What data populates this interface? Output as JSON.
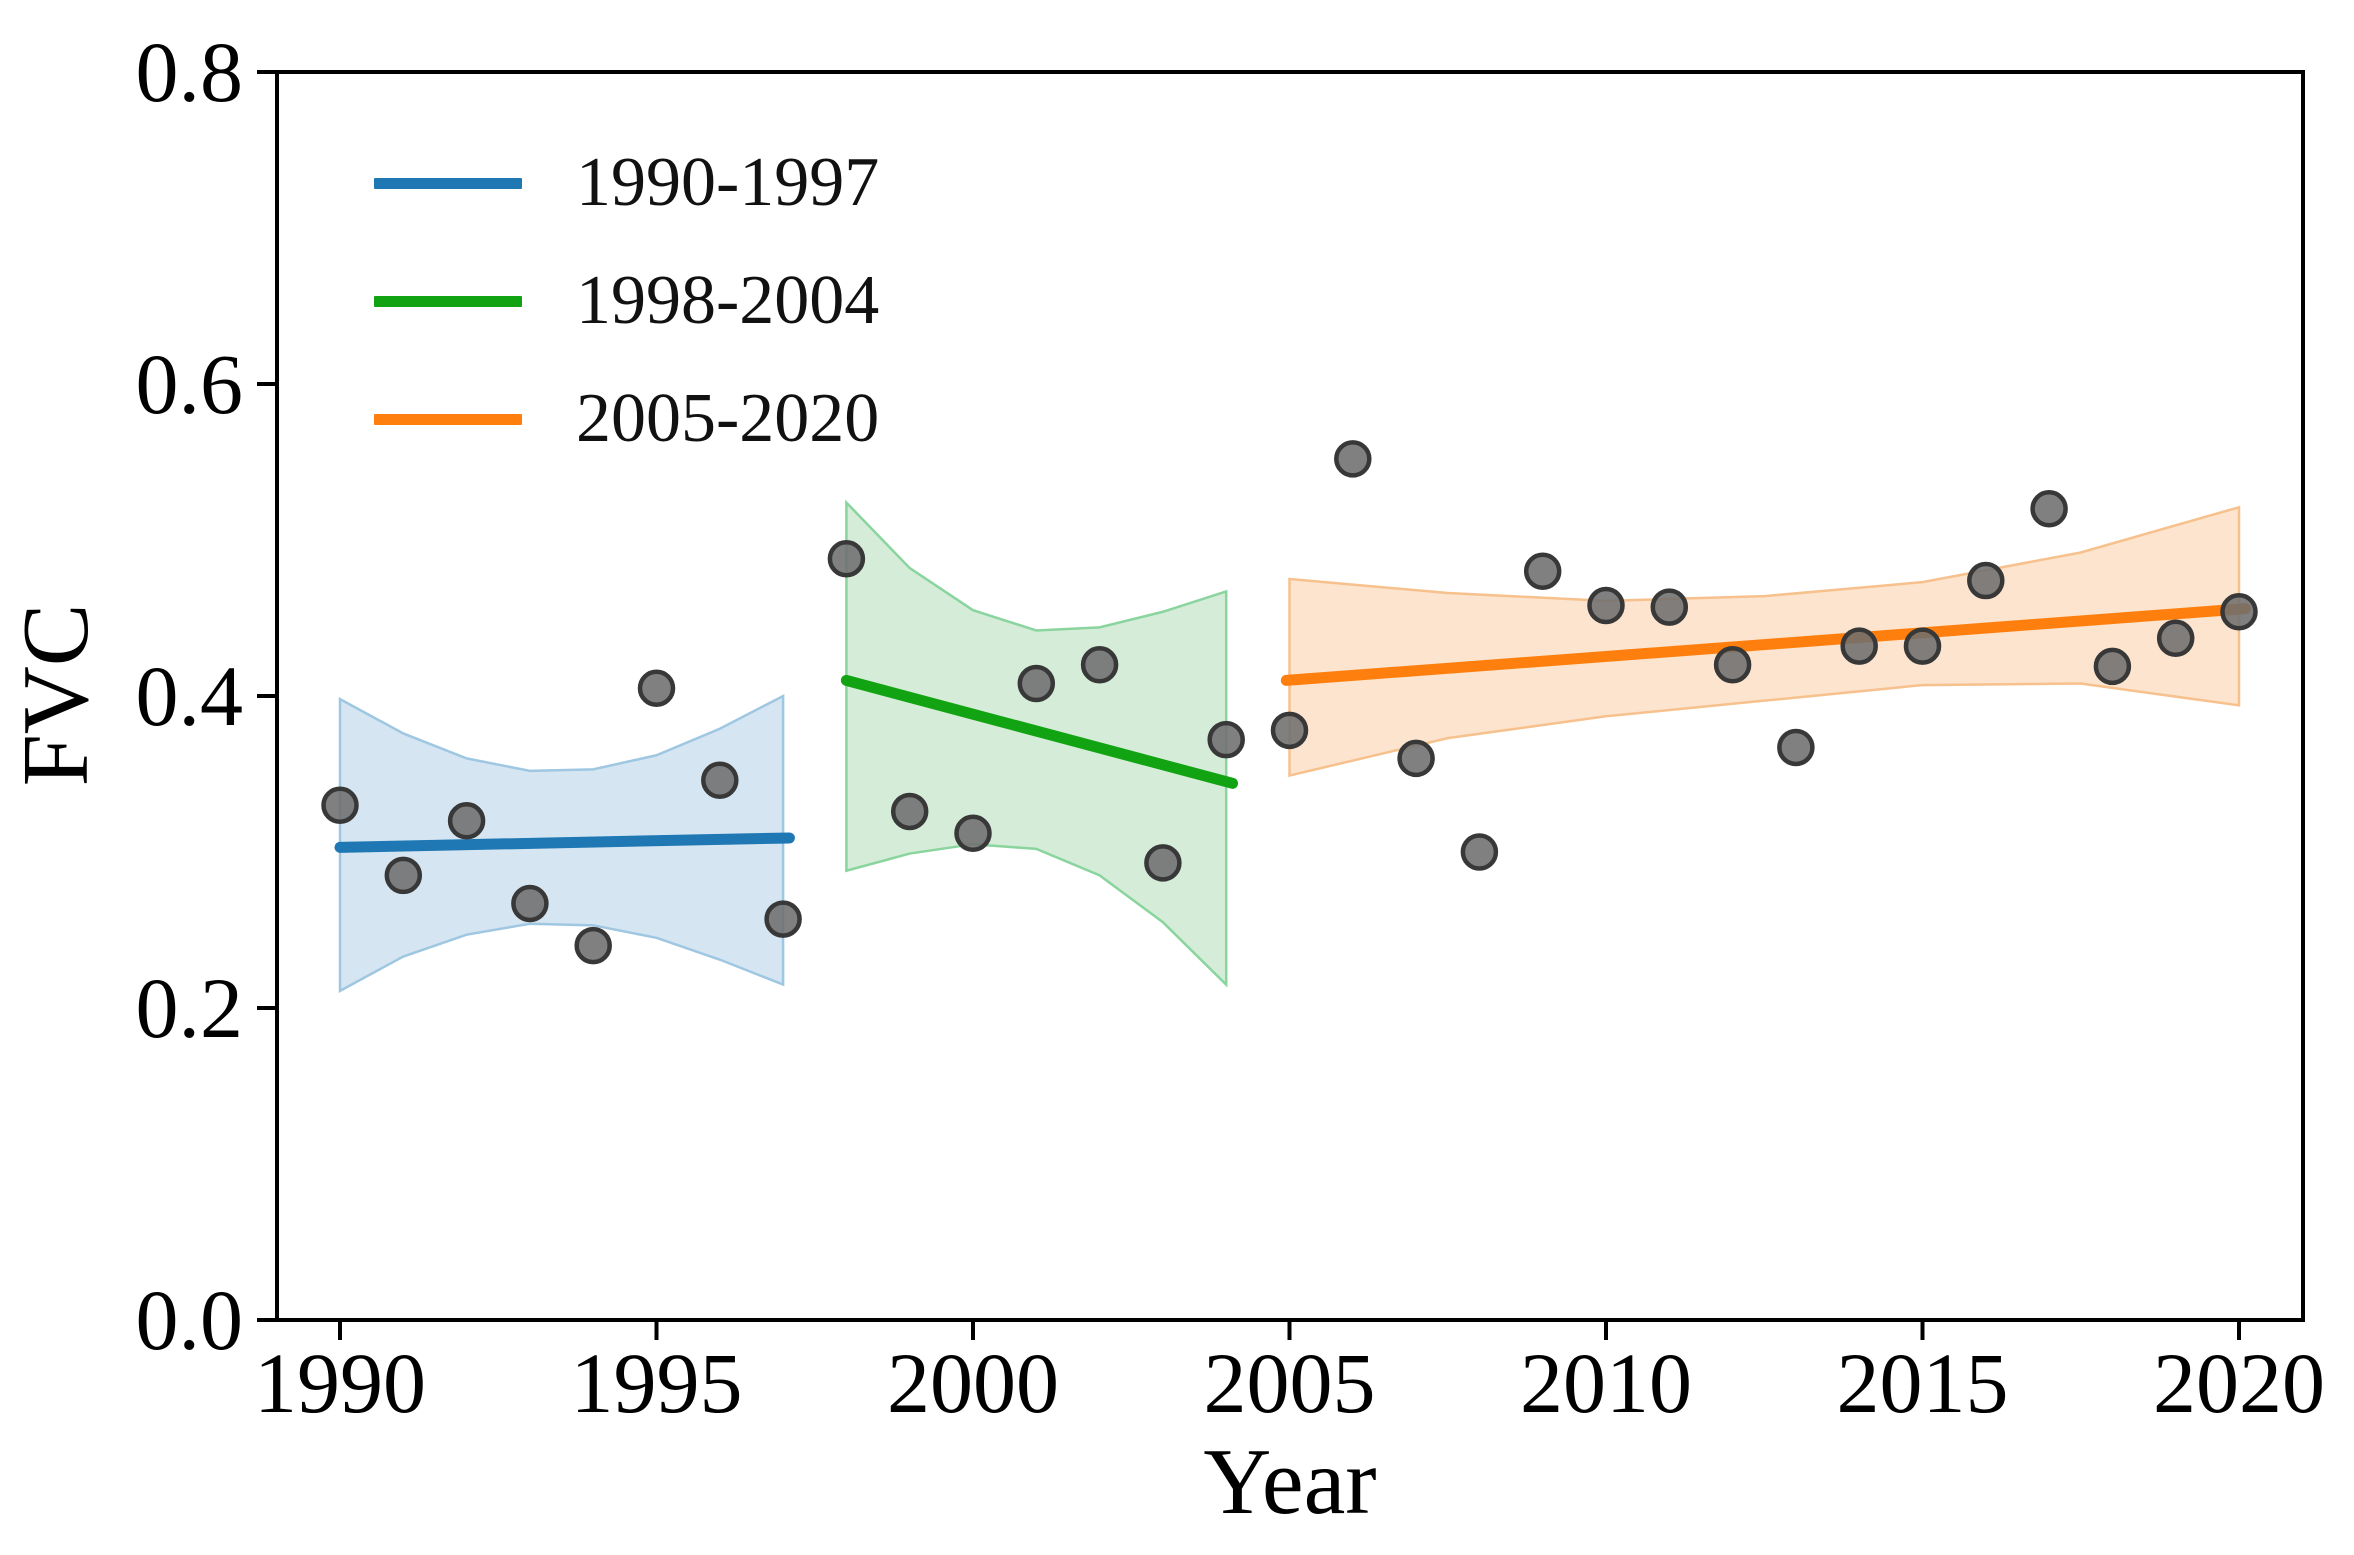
{
  "figure": {
    "background": "#ffffff"
  },
  "chart_data": {
    "type": "scatter",
    "title": "",
    "xlabel": "Year",
    "ylabel": "FVC",
    "xlim": [
      1989,
      2021
    ],
    "ylim": [
      0.0,
      0.8
    ],
    "grid": false,
    "legend_position": "upper-left",
    "xticks": [
      1990,
      1995,
      2000,
      2005,
      2010,
      2015,
      2020
    ],
    "ytick_labels": [
      "0.0",
      "0.2",
      "0.4",
      "0.6",
      "0.8"
    ],
    "ytick_values": [
      0.0,
      0.2,
      0.4,
      0.6,
      0.8
    ],
    "point_color": "#6e6e6e",
    "point_edge_color": "#383838",
    "points": [
      {
        "year": 1990,
        "fvc": 0.33
      },
      {
        "year": 1991,
        "fvc": 0.285
      },
      {
        "year": 1992,
        "fvc": 0.32
      },
      {
        "year": 1993,
        "fvc": 0.267
      },
      {
        "year": 1994,
        "fvc": 0.24
      },
      {
        "year": 1995,
        "fvc": 0.405
      },
      {
        "year": 1996,
        "fvc": 0.346
      },
      {
        "year": 1997,
        "fvc": 0.257
      },
      {
        "year": 1998,
        "fvc": 0.488
      },
      {
        "year": 1999,
        "fvc": 0.326
      },
      {
        "year": 2000,
        "fvc": 0.312
      },
      {
        "year": 2001,
        "fvc": 0.408
      },
      {
        "year": 2002,
        "fvc": 0.42
      },
      {
        "year": 2003,
        "fvc": 0.293
      },
      {
        "year": 2004,
        "fvc": 0.372
      },
      {
        "year": 2005,
        "fvc": 0.378
      },
      {
        "year": 2006,
        "fvc": 0.552
      },
      {
        "year": 2007,
        "fvc": 0.36
      },
      {
        "year": 2008,
        "fvc": 0.3
      },
      {
        "year": 2009,
        "fvc": 0.48
      },
      {
        "year": 2010,
        "fvc": 0.458
      },
      {
        "year": 2011,
        "fvc": 0.457
      },
      {
        "year": 2012,
        "fvc": 0.42
      },
      {
        "year": 2013,
        "fvc": 0.367
      },
      {
        "year": 2014,
        "fvc": 0.432
      },
      {
        "year": 2015,
        "fvc": 0.432
      },
      {
        "year": 2016,
        "fvc": 0.474
      },
      {
        "year": 2017,
        "fvc": 0.52
      },
      {
        "year": 2018,
        "fvc": 0.419
      },
      {
        "year": 2019,
        "fvc": 0.437
      },
      {
        "year": 2020,
        "fvc": 0.454
      }
    ],
    "series": [
      {
        "name": "1990-1997",
        "kind": "linear-trend-with-ci",
        "color": "#1f77b4",
        "band_color": "#d5e5f2",
        "band_edge_color": "#9fc7e2",
        "trend": {
          "x": [
            1990.0,
            1997.1
          ],
          "y": [
            0.303,
            0.309
          ]
        },
        "ci_band": {
          "x": [
            1990,
            1991,
            1992,
            1993,
            1994,
            1995,
            1996,
            1997
          ],
          "hi": [
            0.398,
            0.376,
            0.36,
            0.352,
            0.353,
            0.362,
            0.379,
            0.4
          ],
          "lo": [
            0.211,
            0.233,
            0.247,
            0.254,
            0.253,
            0.245,
            0.231,
            0.215
          ]
        }
      },
      {
        "name": "1998-2004",
        "kind": "linear-trend-with-ci",
        "color": "#12a312",
        "band_color": "#d5edd8",
        "band_edge_color": "#8ad49e",
        "trend": {
          "x": [
            1998.0,
            2004.1
          ],
          "y": [
            0.41,
            0.344
          ]
        },
        "ci_band": {
          "x": [
            1998,
            1999,
            2000,
            2001,
            2002,
            2003,
            2004
          ],
          "hi": [
            0.524,
            0.482,
            0.455,
            0.442,
            0.444,
            0.454,
            0.467
          ],
          "lo": [
            0.288,
            0.299,
            0.305,
            0.302,
            0.285,
            0.255,
            0.215
          ]
        }
      },
      {
        "name": "2005-2020",
        "kind": "linear-trend-with-ci",
        "color": "#ff7f0e",
        "band_color": "#fce4ce",
        "band_edge_color": "#f7c18d",
        "trend": {
          "x": [
            2004.95,
            2020.1
          ],
          "y": [
            0.41,
            0.456
          ]
        },
        "ci_band": {
          "x": [
            2005,
            2007.5,
            2010,
            2012.5,
            2015,
            2017.5,
            2020
          ],
          "hi": [
            0.475,
            0.466,
            0.461,
            0.464,
            0.473,
            0.492,
            0.521
          ],
          "lo": [
            0.349,
            0.373,
            0.387,
            0.397,
            0.407,
            0.408,
            0.394
          ]
        }
      }
    ]
  }
}
